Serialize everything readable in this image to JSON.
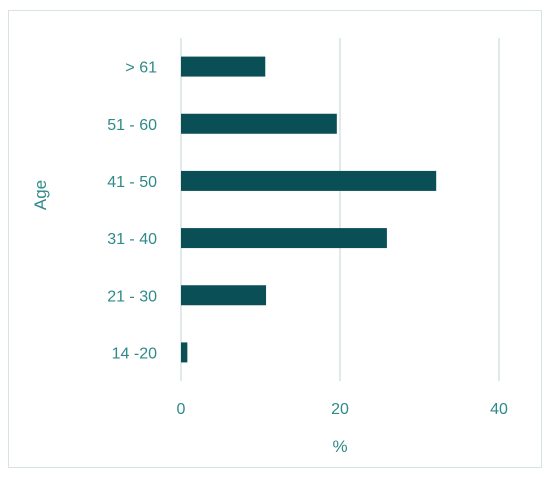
{
  "chart_data": {
    "type": "bar",
    "orientation": "horizontal",
    "categories": [
      "14 -20",
      "21 - 30",
      "31 - 40",
      "41 - 50",
      "51 - 60",
      "> 61"
    ],
    "values": [
      0.8,
      10.7,
      25.9,
      32.1,
      19.6,
      10.6
    ],
    "xlabel": "%",
    "ylabel": "Age",
    "xlim": [
      0,
      40
    ],
    "xticks": [
      "0",
      "20",
      "40"
    ],
    "grid": "vertical",
    "legend": "none",
    "colors": {
      "bar": "#0b4f56",
      "text": "#2e8a89",
      "grid": "#d6e3e2",
      "frame": "#d6e3e2"
    }
  }
}
